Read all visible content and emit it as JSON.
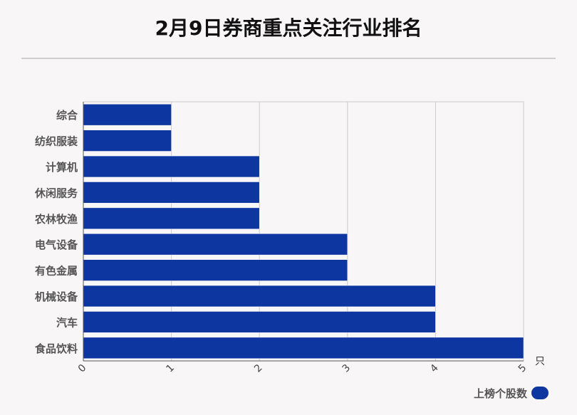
{
  "title": "2月9日券商重点关注行业排名",
  "chart_data": {
    "type": "bar",
    "orientation": "horizontal",
    "categories": [
      "综合",
      "纺织服装",
      "计算机",
      "休闲服务",
      "农林牧渔",
      "电气设备",
      "有色金属",
      "机械设备",
      "汽车",
      "食品饮料"
    ],
    "series": [
      {
        "name": "上榜个股数",
        "values": [
          1,
          1,
          2,
          2,
          2,
          3,
          3,
          4,
          4,
          5
        ]
      }
    ],
    "xlim": [
      0,
      5
    ],
    "xticks": [
      "0",
      "1",
      "2",
      "3",
      "4",
      "5"
    ],
    "xunit": "只",
    "grid": true,
    "legend": "bottom-right",
    "bar_color": "#0e36a0"
  }
}
